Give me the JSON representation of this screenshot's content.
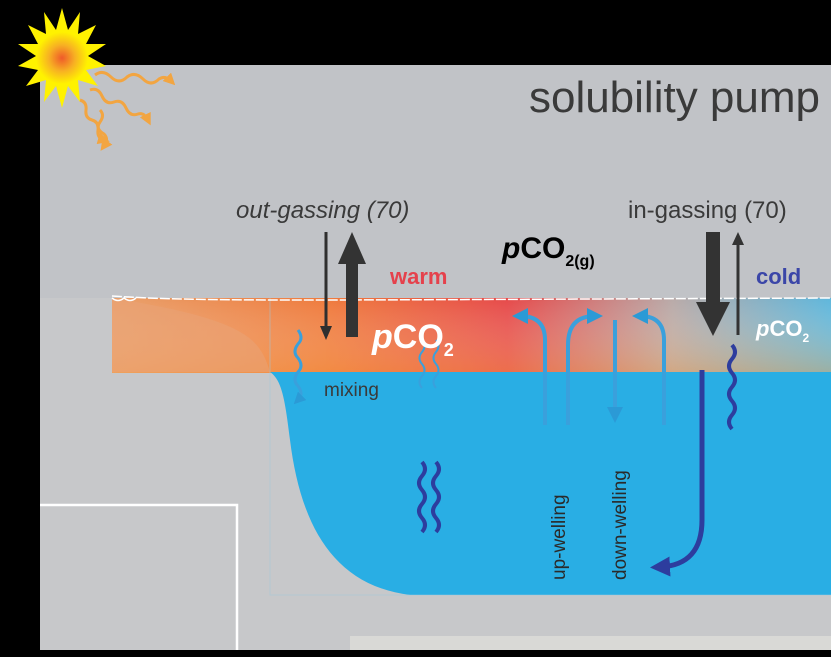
{
  "title": "solubility pump",
  "fluxes": {
    "out_gassing": "out-gassing (70)",
    "in_gassing": "in-gassing (70)"
  },
  "atmosphere": {
    "italic": "p",
    "base": "CO",
    "subscript": "2(g)"
  },
  "warm": {
    "label": "warm",
    "italic": "p",
    "base": "CO",
    "subscript": "2"
  },
  "cold": {
    "label": "cold",
    "italic": "p",
    "base": "CO",
    "subscript": "2"
  },
  "processes": {
    "mixing": "mixing",
    "upwelling": "up-welling",
    "downwelling": "down-welling"
  }
}
